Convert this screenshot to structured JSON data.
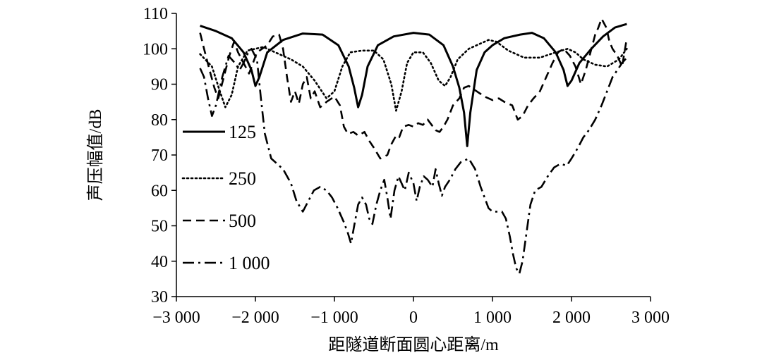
{
  "chart_data": {
    "type": "line",
    "title": "",
    "xlabel": "距隧道断面圆心距离/m",
    "ylabel": "声压幅值/dB",
    "xlim": [
      -3000,
      3000
    ],
    "ylim": [
      30,
      110
    ],
    "x_ticks": [
      -3000,
      -2000,
      -1000,
      0,
      1000,
      2000,
      3000
    ],
    "x_tick_labels": [
      "−3 000",
      "−2 000",
      "−1 000",
      "0",
      "1 000",
      "2 000",
      "3 000"
    ],
    "y_ticks": [
      30,
      40,
      50,
      60,
      70,
      80,
      90,
      100,
      110
    ],
    "y_tick_labels": [
      "30",
      "40",
      "50",
      "60",
      "70",
      "80",
      "90",
      "100",
      "110"
    ],
    "grid": false,
    "legend_position": "left",
    "series": [
      {
        "name": "125",
        "style": "solid",
        "points": [
          [
            -2700,
            106.5
          ],
          [
            -2500,
            105
          ],
          [
            -2300,
            103
          ],
          [
            -2150,
            99
          ],
          [
            -2050,
            94
          ],
          [
            -2000,
            89.5
          ],
          [
            -1950,
            92
          ],
          [
            -1850,
            99
          ],
          [
            -1650,
            102.5
          ],
          [
            -1400,
            104.3
          ],
          [
            -1150,
            104
          ],
          [
            -950,
            101
          ],
          [
            -820,
            95
          ],
          [
            -750,
            89
          ],
          [
            -700,
            83.5
          ],
          [
            -650,
            87
          ],
          [
            -580,
            95
          ],
          [
            -450,
            101
          ],
          [
            -250,
            103.5
          ],
          [
            0,
            104.5
          ],
          [
            200,
            104
          ],
          [
            380,
            101
          ],
          [
            500,
            95
          ],
          [
            580,
            89
          ],
          [
            640,
            82
          ],
          [
            680,
            72.5
          ],
          [
            720,
            82
          ],
          [
            800,
            94
          ],
          [
            900,
            99
          ],
          [
            1000,
            101
          ],
          [
            1150,
            103
          ],
          [
            1350,
            104
          ],
          [
            1500,
            104.5
          ],
          [
            1650,
            103
          ],
          [
            1800,
            99
          ],
          [
            1900,
            94
          ],
          [
            1950,
            89.5
          ],
          [
            2000,
            91
          ],
          [
            2100,
            96
          ],
          [
            2250,
            100
          ],
          [
            2400,
            103.5
          ],
          [
            2550,
            106
          ],
          [
            2700,
            107
          ]
        ]
      },
      {
        "name": "250",
        "style": "dotted",
        "points": [
          [
            -2700,
            98.5
          ],
          [
            -2550,
            95
          ],
          [
            -2450,
            88
          ],
          [
            -2380,
            83.5
          ],
          [
            -2300,
            87
          ],
          [
            -2220,
            95
          ],
          [
            -2100,
            99.5
          ],
          [
            -1900,
            100.5
          ],
          [
            -1700,
            98.5
          ],
          [
            -1550,
            97
          ],
          [
            -1400,
            95
          ],
          [
            -1250,
            91
          ],
          [
            -1100,
            86
          ],
          [
            -1000,
            88
          ],
          [
            -900,
            95
          ],
          [
            -800,
            99
          ],
          [
            -650,
            99.5
          ],
          [
            -500,
            99.5
          ],
          [
            -380,
            97
          ],
          [
            -280,
            90
          ],
          [
            -220,
            82.5
          ],
          [
            -150,
            88
          ],
          [
            -80,
            96
          ],
          [
            0,
            99
          ],
          [
            120,
            99
          ],
          [
            220,
            96
          ],
          [
            320,
            91
          ],
          [
            400,
            89.5
          ],
          [
            470,
            92
          ],
          [
            560,
            97
          ],
          [
            700,
            100
          ],
          [
            850,
            101.5
          ],
          [
            950,
            102.5
          ],
          [
            1050,
            102
          ],
          [
            1200,
            99.5
          ],
          [
            1400,
            97.5
          ],
          [
            1600,
            97.5
          ],
          [
            1800,
            99
          ],
          [
            1950,
            100
          ],
          [
            2050,
            99
          ],
          [
            2150,
            97
          ],
          [
            2300,
            95.5
          ],
          [
            2450,
            95
          ],
          [
            2600,
            97
          ],
          [
            2700,
            100
          ]
        ]
      },
      {
        "name": "500",
        "style": "dashed",
        "points": [
          [
            -2700,
            104.5
          ],
          [
            -2650,
            100
          ],
          [
            -2580,
            94
          ],
          [
            -2520,
            89
          ],
          [
            -2470,
            86
          ],
          [
            -2400,
            92
          ],
          [
            -2330,
            98
          ],
          [
            -2270,
            102
          ],
          [
            -2220,
            99
          ],
          [
            -2150,
            96
          ],
          [
            -2080,
            93
          ],
          [
            -1980,
            99
          ],
          [
            -1850,
            101
          ],
          [
            -1780,
            103.5
          ],
          [
            -1700,
            104
          ],
          [
            -1650,
            100
          ],
          [
            -1600,
            92
          ],
          [
            -1550,
            85
          ],
          [
            -1500,
            88
          ],
          [
            -1450,
            84.5
          ],
          [
            -1400,
            90
          ],
          [
            -1350,
            92
          ],
          [
            -1300,
            86
          ],
          [
            -1250,
            88
          ],
          [
            -1180,
            83.5
          ],
          [
            -1100,
            85
          ],
          [
            -1000,
            86.5
          ],
          [
            -930,
            84
          ],
          [
            -880,
            78
          ],
          [
            -830,
            76
          ],
          [
            -760,
            76.5
          ],
          [
            -700,
            75.5
          ],
          [
            -620,
            76.5
          ],
          [
            -560,
            74
          ],
          [
            -500,
            72
          ],
          [
            -420,
            69
          ],
          [
            -330,
            70
          ],
          [
            -280,
            73
          ],
          [
            -220,
            75.5
          ],
          [
            -180,
            75
          ],
          [
            -130,
            78
          ],
          [
            -60,
            78.5
          ],
          [
            0,
            78
          ],
          [
            60,
            79
          ],
          [
            120,
            78.5
          ],
          [
            180,
            80
          ],
          [
            230,
            78.5
          ],
          [
            280,
            77
          ],
          [
            330,
            76.5
          ],
          [
            380,
            78
          ],
          [
            430,
            80
          ],
          [
            500,
            84
          ],
          [
            580,
            86
          ],
          [
            640,
            89
          ],
          [
            700,
            89.5
          ],
          [
            800,
            88
          ],
          [
            900,
            86.5
          ],
          [
            1000,
            85.5
          ],
          [
            1080,
            86
          ],
          [
            1150,
            85
          ],
          [
            1250,
            84
          ],
          [
            1320,
            80
          ],
          [
            1380,
            81
          ],
          [
            1450,
            84
          ],
          [
            1520,
            86
          ],
          [
            1600,
            88
          ],
          [
            1680,
            92
          ],
          [
            1760,
            96
          ],
          [
            1830,
            99
          ],
          [
            1900,
            100
          ],
          [
            1980,
            98
          ],
          [
            2050,
            95
          ],
          [
            2120,
            90
          ],
          [
            2180,
            94
          ],
          [
            2240,
            99
          ],
          [
            2300,
            104
          ],
          [
            2340,
            106
          ],
          [
            2380,
            108.5
          ],
          [
            2440,
            106
          ],
          [
            2480,
            102
          ],
          [
            2520,
            100
          ],
          [
            2580,
            98
          ],
          [
            2640,
            95
          ],
          [
            2700,
            103
          ]
        ]
      },
      {
        "name": "1 000",
        "style": "dashdot",
        "points": [
          [
            -2700,
            94.5
          ],
          [
            -2650,
            92
          ],
          [
            -2600,
            86
          ],
          [
            -2550,
            81
          ],
          [
            -2500,
            84
          ],
          [
            -2420,
            92
          ],
          [
            -2340,
            98
          ],
          [
            -2260,
            96
          ],
          [
            -2200,
            94
          ],
          [
            -2150,
            96
          ],
          [
            -2100,
            98.5
          ],
          [
            -2050,
            100
          ],
          [
            -1980,
            97
          ],
          [
            -1930,
            86
          ],
          [
            -1880,
            76
          ],
          [
            -1800,
            69
          ],
          [
            -1650,
            66
          ],
          [
            -1550,
            62
          ],
          [
            -1480,
            57
          ],
          [
            -1400,
            54
          ],
          [
            -1330,
            57
          ],
          [
            -1260,
            60
          ],
          [
            -1180,
            61
          ],
          [
            -1100,
            60
          ],
          [
            -1030,
            58
          ],
          [
            -960,
            55
          ],
          [
            -880,
            51
          ],
          [
            -830,
            48
          ],
          [
            -790,
            45
          ],
          [
            -750,
            50
          ],
          [
            -700,
            56
          ],
          [
            -650,
            58
          ],
          [
            -600,
            56
          ],
          [
            -560,
            52
          ],
          [
            -520,
            50.5
          ],
          [
            -470,
            56
          ],
          [
            -420,
            60
          ],
          [
            -370,
            63
          ],
          [
            -330,
            58
          ],
          [
            -290,
            52
          ],
          [
            -240,
            60
          ],
          [
            -190,
            64
          ],
          [
            -150,
            62
          ],
          [
            -110,
            60
          ],
          [
            -60,
            65
          ],
          [
            0,
            62
          ],
          [
            40,
            57
          ],
          [
            80,
            61
          ],
          [
            130,
            64
          ],
          [
            180,
            63
          ],
          [
            240,
            61
          ],
          [
            280,
            66
          ],
          [
            320,
            62
          ],
          [
            360,
            58.5
          ],
          [
            400,
            61
          ],
          [
            460,
            63
          ],
          [
            530,
            66
          ],
          [
            600,
            68
          ],
          [
            700,
            69
          ],
          [
            780,
            66
          ],
          [
            850,
            61
          ],
          [
            900,
            58
          ],
          [
            950,
            55
          ],
          [
            1000,
            54
          ],
          [
            1060,
            54
          ],
          [
            1120,
            54
          ],
          [
            1170,
            52
          ],
          [
            1220,
            47
          ],
          [
            1260,
            42
          ],
          [
            1300,
            38
          ],
          [
            1340,
            36.5
          ],
          [
            1380,
            40
          ],
          [
            1430,
            48
          ],
          [
            1480,
            56
          ],
          [
            1540,
            60
          ],
          [
            1620,
            61
          ],
          [
            1700,
            64
          ],
          [
            1780,
            66.5
          ],
          [
            1860,
            67.5
          ],
          [
            1940,
            67
          ],
          [
            2000,
            69
          ],
          [
            2080,
            72
          ],
          [
            2150,
            75
          ],
          [
            2220,
            77
          ],
          [
            2300,
            80
          ],
          [
            2380,
            84
          ],
          [
            2450,
            88
          ],
          [
            2520,
            92
          ],
          [
            2580,
            94
          ],
          [
            2640,
            96
          ],
          [
            2700,
            97.5
          ]
        ]
      }
    ]
  }
}
